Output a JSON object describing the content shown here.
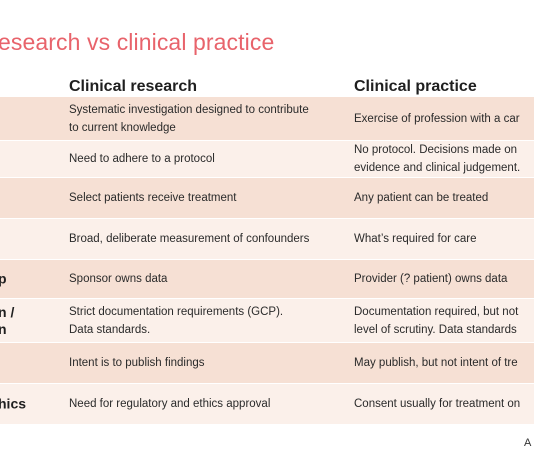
{
  "title": "esearch vs clinical practice",
  "headers": {
    "col1": "Clinical research",
    "col2": "Clinical practice"
  },
  "rows": [
    {
      "label": [],
      "research": [
        "Systematic investigation designed to contribute",
        "to current knowledge"
      ],
      "practice": [
        "Exercise of profession with a car"
      ]
    },
    {
      "label": [],
      "research": [
        "Need to adhere to a protocol"
      ],
      "practice": [
        "No protocol. Decisions made on",
        "evidence and clinical judgement."
      ]
    },
    {
      "label": [],
      "research": [
        "Select patients receive treatment"
      ],
      "practice": [
        "Any patient can be treated"
      ]
    },
    {
      "label": [],
      "research": [
        "Broad, deliberate measurement of confounders"
      ],
      "practice": [
        "What’s required for care"
      ]
    },
    {
      "label": [
        "p"
      ],
      "research": [
        "Sponsor owns data"
      ],
      "practice": [
        "Provider (? patient) owns data"
      ]
    },
    {
      "label": [
        "n  /",
        "n"
      ],
      "research": [
        "Strict documentation requirements (GCP).",
        "Data standards."
      ],
      "practice": [
        "Documentation required, but not",
        "level of scrutiny. Data standards"
      ]
    },
    {
      "label": [],
      "research": [
        "Intent is to publish findings"
      ],
      "practice": [
        "May publish, but not intent of tre"
      ]
    },
    {
      "label": [
        "hics"
      ],
      "research": [
        "Need for regulatory and ethics approval"
      ],
      "practice": [
        "Consent usually for treatment on"
      ]
    }
  ],
  "corner_text": "A"
}
